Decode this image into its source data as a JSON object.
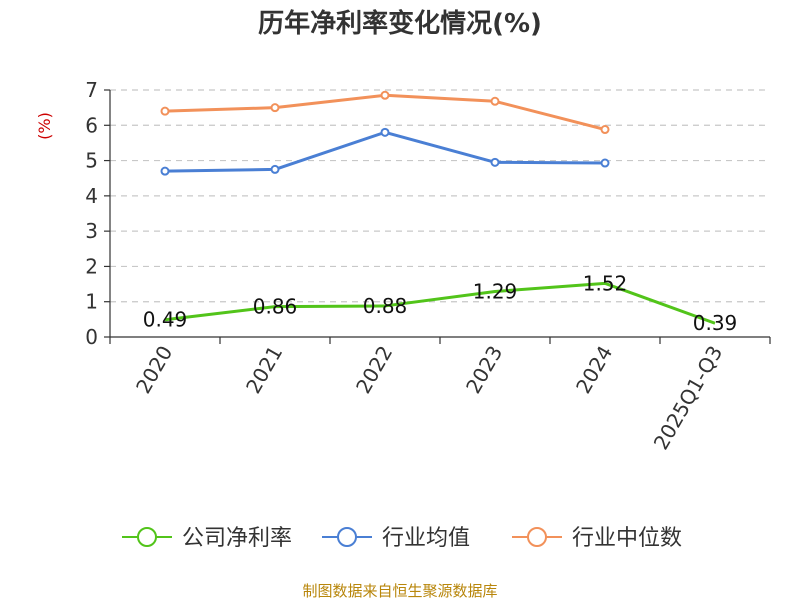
{
  "chart_data": {
    "type": "line",
    "title": "历年净利率变化情况(%)",
    "ylabel": "(%)",
    "xlabel": "",
    "ylim": [
      0,
      7
    ],
    "yticks": [
      "0",
      "1",
      "2",
      "3",
      "4",
      "5",
      "6",
      "7"
    ],
    "categories": [
      "2020",
      "2021",
      "2022",
      "2023",
      "2024",
      "2025Q1-Q3"
    ],
    "grid": true,
    "legend_position": "bottom",
    "series": [
      {
        "name": "公司净利率",
        "color": "#52c41a",
        "values": [
          0.49,
          0.86,
          0.88,
          1.29,
          1.52,
          0.39
        ],
        "labels": [
          "0.49",
          "0.86",
          "0.88",
          "1.29",
          "1.52",
          "0.39"
        ],
        "show_labels": true,
        "show_markers": false
      },
      {
        "name": "行业均值",
        "color": "#4a7fd4",
        "values": [
          4.7,
          4.75,
          5.8,
          4.95,
          4.93,
          null
        ],
        "show_labels": false,
        "show_markers": true
      },
      {
        "name": "行业中位数",
        "color": "#f2915a",
        "values": [
          6.4,
          6.5,
          6.85,
          6.68,
          5.88,
          null
        ],
        "show_labels": false,
        "show_markers": true
      }
    ],
    "source": "制图数据来自恒生聚源数据库"
  }
}
